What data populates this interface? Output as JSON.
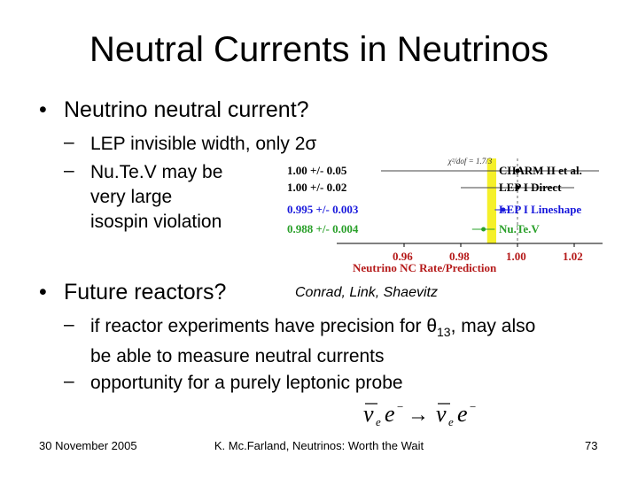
{
  "slide": {
    "title": "Neutral Currents in Neutrinos",
    "bullets": [
      {
        "text": "Neutrino neutral current?"
      },
      {
        "text": "Future reactors?"
      }
    ],
    "sub_bullets_1": [
      {
        "text": "LEP invisible width, only 2σ"
      },
      {
        "lines": [
          "Nu.Te.V may be",
          "very large",
          "isospin violation"
        ]
      }
    ],
    "sub_bullets_2": [
      {
        "line1_pre": "if reactor experiments have precision for θ",
        "sub": "13",
        "line1_post": ", may also",
        "line2": "be able to measure neutral currents"
      },
      {
        "text": "opportunity for a purely leptonic probe"
      }
    ],
    "credit": "Conrad, Link, Shaevitz",
    "footer": {
      "date": "30 November 2005",
      "center": "K. Mc.Farland, Neutrinos: Worth the Wait",
      "page": "73"
    }
  },
  "chart_data": {
    "type": "scatter",
    "xlabel": "Neutrino NC Rate/Prediction",
    "xticks": [
      "0.96",
      "0.98",
      "1.00",
      "1.02"
    ],
    "xlim": [
      0.955,
      1.03
    ],
    "band_label": "χ²/dof = 1.7/3",
    "band": [
      0.9893,
      0.9925
    ],
    "measurements": [
      {
        "label": "1.00 +/- 0.05",
        "experiment": "CHARM II et al.",
        "value": 1.0,
        "error": 0.05,
        "color": "#000000"
      },
      {
        "label": "1.00 +/- 0.02",
        "experiment": "LEP I Direct",
        "value": 1.0,
        "error": 0.02,
        "color": "#000000"
      },
      {
        "label": "0.995 +/- 0.003",
        "experiment": "LEP I Lineshape",
        "value": 0.995,
        "error": 0.003,
        "color": "#1a1adc"
      },
      {
        "label": "0.988 +/- 0.004",
        "experiment": "Nu.Te.V",
        "value": 0.988,
        "error": 0.004,
        "color": "#2aa02a"
      }
    ]
  },
  "formula": {
    "nu1": "ν",
    "sub1": "e",
    "el1": "e",
    "sup1": "−",
    "arrow": "→",
    "nu2": "ν",
    "sub2": "e",
    "el2": "e",
    "sup2": "−"
  }
}
